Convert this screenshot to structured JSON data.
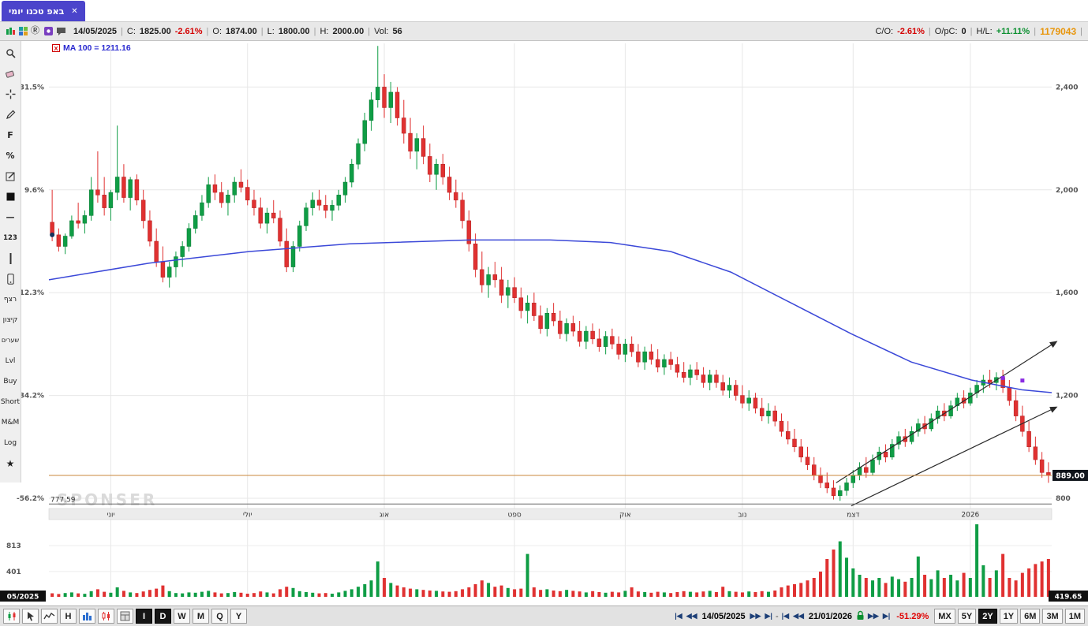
{
  "tab": {
    "title": "באפ טכנו יומי",
    "close": "✕"
  },
  "infobar": {
    "sep": "|",
    "date": "14/05/2025",
    "c_label": "C:",
    "c_value": "1825.00",
    "c_change": "-2.61%",
    "o_label": "O:",
    "o_value": "1874.00",
    "l_label": "L:",
    "l_value": "1800.00",
    "h_label": "H:",
    "h_value": "2000.00",
    "vol_label": "Vol:",
    "vol_value": "56",
    "right": {
      "co_label": "C/O:",
      "co_value": "-2.61%",
      "opc_label": "O/pC:",
      "opc_value": "0",
      "hl_label": "H/L:",
      "hl_value": "+11.11%",
      "id": "1179043"
    }
  },
  "sidebar": {
    "f": "F",
    "pct": "%",
    "dash": "—",
    "num": "123",
    "ratzef": "רצף",
    "kitzon": "קיצון",
    "shearim": "שערים",
    "lvl": "Lvl",
    "buy": "Buy",
    "short": "Short",
    "mm": "M&M",
    "log": "Log",
    "star": "★"
  },
  "chart_data": {
    "type": "candlestick",
    "ylim": [
      760,
      2570
    ],
    "vol_scale": 0.08,
    "price_ticks": [
      {
        "price": 2400,
        "label": "2,400",
        "pct": "31.5%"
      },
      {
        "price": 2000,
        "label": "2,000",
        "pct": "9.6%"
      },
      {
        "price": 1600,
        "label": "1,600",
        "pct": "-12.3%"
      },
      {
        "price": 1200,
        "label": "1,200",
        "pct": "-34.2%"
      },
      {
        "price": 800,
        "label": "800",
        "pct": "-56.2%"
      }
    ],
    "months": [
      {
        "label": "יוני",
        "idx": 9
      },
      {
        "label": "יולי",
        "idx": 30
      },
      {
        "label": "אוג",
        "idx": 51
      },
      {
        "label": "ספט",
        "idx": 71
      },
      {
        "label": "אוק",
        "idx": 88
      },
      {
        "label": "נוב",
        "idx": 106
      },
      {
        "label": "דצמ",
        "idx": 123
      },
      {
        "label": "2026",
        "idx": 141
      }
    ],
    "volume_ticks": [
      {
        "value": 813,
        "label": "813"
      },
      {
        "value": 401,
        "label": "401"
      }
    ],
    "ma": {
      "legend": "MA 100 = 1211.16",
      "box_label": "X",
      "color": "#3b48d8",
      "points": [
        [
          0,
          1650
        ],
        [
          0.1,
          1715
        ],
        [
          0.2,
          1760
        ],
        [
          0.3,
          1790
        ],
        [
          0.42,
          1805
        ],
        [
          0.5,
          1805
        ],
        [
          0.56,
          1795
        ],
        [
          0.62,
          1760
        ],
        [
          0.68,
          1680
        ],
        [
          0.74,
          1560
        ],
        [
          0.8,
          1440
        ],
        [
          0.86,
          1330
        ],
        [
          0.92,
          1260
        ],
        [
          0.97,
          1222
        ],
        [
          1,
          1211
        ]
      ]
    },
    "trendlines": [
      {
        "from": [
          0.785,
          860
        ],
        "to": [
          1.005,
          1410
        ]
      },
      {
        "from": [
          0.8,
          770
        ],
        "to": [
          1.005,
          1155
        ]
      }
    ],
    "hlines": [
      {
        "price": 889,
        "color": "#c8873c",
        "badge": "889.00"
      },
      {
        "price": 777.59,
        "color": "#666666",
        "label": "777.59"
      }
    ],
    "markers": [
      {
        "idx": 146,
        "price": 1268
      },
      {
        "idx": 149,
        "price": 1258
      }
    ],
    "selection_dot": {
      "idx": 0,
      "price": 1825
    },
    "badges": {
      "bottom_left": "05/2025",
      "bottom_right": "419.65"
    },
    "watermark": "SPONSER",
    "colors": {
      "up": "#0f9d45",
      "down": "#e03131"
    },
    "candles": [
      [
        1874,
        2000,
        1800,
        1825
      ],
      [
        1825,
        1850,
        1760,
        1780
      ],
      [
        1780,
        1830,
        1750,
        1820
      ],
      [
        1820,
        1900,
        1810,
        1880
      ],
      [
        1880,
        1950,
        1850,
        1870
      ],
      [
        1870,
        1920,
        1830,
        1900
      ],
      [
        1900,
        2050,
        1880,
        2000
      ],
      [
        2000,
        2150,
        1950,
        1980
      ],
      [
        1980,
        2050,
        1900,
        1930
      ],
      [
        1930,
        2000,
        1880,
        1990
      ],
      [
        1990,
        2250,
        1960,
        2050
      ],
      [
        2050,
        2100,
        1950,
        1970
      ],
      [
        1970,
        2050,
        1920,
        2040
      ],
      [
        2040,
        2060,
        1940,
        1960
      ],
      [
        1960,
        2000,
        1850,
        1880
      ],
      [
        1880,
        1920,
        1780,
        1800
      ],
      [
        1800,
        1850,
        1700,
        1720
      ],
      [
        1720,
        1780,
        1640,
        1660
      ],
      [
        1660,
        1720,
        1620,
        1700
      ],
      [
        1700,
        1760,
        1660,
        1740
      ],
      [
        1740,
        1800,
        1700,
        1780
      ],
      [
        1780,
        1870,
        1760,
        1850
      ],
      [
        1850,
        1920,
        1830,
        1900
      ],
      [
        1900,
        1980,
        1880,
        1950
      ],
      [
        1950,
        2050,
        1930,
        2020
      ],
      [
        2020,
        2060,
        1960,
        1990
      ],
      [
        1990,
        2030,
        1930,
        1950
      ],
      [
        1950,
        2000,
        1900,
        1980
      ],
      [
        1980,
        2050,
        1950,
        2030
      ],
      [
        2030,
        2080,
        1990,
        2010
      ],
      [
        2010,
        2040,
        1940,
        1960
      ],
      [
        1960,
        2000,
        1900,
        1930
      ],
      [
        1930,
        1970,
        1850,
        1870
      ],
      [
        1870,
        1930,
        1830,
        1910
      ],
      [
        1910,
        1960,
        1870,
        1890
      ],
      [
        1890,
        1920,
        1780,
        1800
      ],
      [
        1800,
        1850,
        1680,
        1700
      ],
      [
        1700,
        1800,
        1680,
        1780
      ],
      [
        1780,
        1880,
        1760,
        1860
      ],
      [
        1860,
        1950,
        1840,
        1930
      ],
      [
        1930,
        1990,
        1900,
        1960
      ],
      [
        1960,
        2000,
        1920,
        1940
      ],
      [
        1940,
        1980,
        1890,
        1920
      ],
      [
        1920,
        1960,
        1880,
        1940
      ],
      [
        1940,
        2000,
        1920,
        1980
      ],
      [
        1980,
        2050,
        1950,
        2030
      ],
      [
        2030,
        2120,
        2010,
        2100
      ],
      [
        2100,
        2200,
        2080,
        2180
      ],
      [
        2180,
        2300,
        2150,
        2270
      ],
      [
        2270,
        2380,
        2230,
        2350
      ],
      [
        2350,
        2560,
        2320,
        2400
      ],
      [
        2400,
        2450,
        2280,
        2320
      ],
      [
        2320,
        2420,
        2260,
        2380
      ],
      [
        2380,
        2400,
        2250,
        2280
      ],
      [
        2280,
        2350,
        2180,
        2220
      ],
      [
        2220,
        2280,
        2120,
        2150
      ],
      [
        2150,
        2220,
        2080,
        2200
      ],
      [
        2200,
        2250,
        2100,
        2130
      ],
      [
        2130,
        2180,
        2030,
        2060
      ],
      [
        2060,
        2120,
        2000,
        2100
      ],
      [
        2100,
        2140,
        2020,
        2050
      ],
      [
        2050,
        2090,
        1960,
        1990
      ],
      [
        1990,
        2040,
        1930,
        1960
      ],
      [
        1960,
        1990,
        1850,
        1880
      ],
      [
        1880,
        1920,
        1760,
        1790
      ],
      [
        1790,
        1830,
        1660,
        1690
      ],
      [
        1690,
        1760,
        1600,
        1630
      ],
      [
        1630,
        1700,
        1580,
        1670
      ],
      [
        1670,
        1720,
        1620,
        1650
      ],
      [
        1650,
        1700,
        1560,
        1590
      ],
      [
        1590,
        1650,
        1540,
        1620
      ],
      [
        1620,
        1660,
        1560,
        1580
      ],
      [
        1580,
        1620,
        1500,
        1530
      ],
      [
        1530,
        1590,
        1480,
        1560
      ],
      [
        1560,
        1600,
        1490,
        1510
      ],
      [
        1510,
        1550,
        1440,
        1460
      ],
      [
        1460,
        1540,
        1430,
        1520
      ],
      [
        1520,
        1560,
        1470,
        1490
      ],
      [
        1490,
        1530,
        1420,
        1440
      ],
      [
        1440,
        1500,
        1410,
        1480
      ],
      [
        1480,
        1510,
        1430,
        1450
      ],
      [
        1450,
        1490,
        1390,
        1410
      ],
      [
        1410,
        1470,
        1380,
        1450
      ],
      [
        1450,
        1480,
        1400,
        1420
      ],
      [
        1420,
        1460,
        1370,
        1390
      ],
      [
        1390,
        1450,
        1360,
        1430
      ],
      [
        1430,
        1460,
        1380,
        1400
      ],
      [
        1400,
        1430,
        1340,
        1360
      ],
      [
        1360,
        1420,
        1330,
        1400
      ],
      [
        1400,
        1430,
        1350,
        1370
      ],
      [
        1370,
        1400,
        1310,
        1330
      ],
      [
        1330,
        1390,
        1300,
        1370
      ],
      [
        1370,
        1400,
        1320,
        1340
      ],
      [
        1340,
        1380,
        1290,
        1310
      ],
      [
        1310,
        1360,
        1280,
        1340
      ],
      [
        1340,
        1370,
        1300,
        1320
      ],
      [
        1320,
        1350,
        1270,
        1290
      ],
      [
        1290,
        1330,
        1250,
        1270
      ],
      [
        1270,
        1320,
        1240,
        1300
      ],
      [
        1300,
        1330,
        1260,
        1280
      ],
      [
        1280,
        1310,
        1230,
        1250
      ],
      [
        1250,
        1300,
        1220,
        1280
      ],
      [
        1280,
        1300,
        1230,
        1250
      ],
      [
        1250,
        1280,
        1200,
        1220
      ],
      [
        1220,
        1270,
        1190,
        1240
      ],
      [
        1240,
        1260,
        1180,
        1200
      ],
      [
        1200,
        1240,
        1150,
        1170
      ],
      [
        1170,
        1220,
        1140,
        1190
      ],
      [
        1190,
        1210,
        1130,
        1150
      ],
      [
        1150,
        1190,
        1100,
        1120
      ],
      [
        1120,
        1170,
        1090,
        1140
      ],
      [
        1140,
        1160,
        1080,
        1100
      ],
      [
        1100,
        1130,
        1040,
        1060
      ],
      [
        1060,
        1100,
        1010,
        1030
      ],
      [
        1030,
        1070,
        980,
        1000
      ],
      [
        1000,
        1030,
        940,
        960
      ],
      [
        960,
        1000,
        910,
        930
      ],
      [
        930,
        960,
        870,
        890
      ],
      [
        890,
        920,
        840,
        860
      ],
      [
        860,
        900,
        820,
        840
      ],
      [
        840,
        870,
        795,
        810
      ],
      [
        810,
        850,
        790,
        830
      ],
      [
        830,
        880,
        810,
        860
      ],
      [
        860,
        910,
        840,
        890
      ],
      [
        890,
        940,
        870,
        920
      ],
      [
        920,
        960,
        880,
        900
      ],
      [
        900,
        970,
        890,
        950
      ],
      [
        950,
        1000,
        930,
        980
      ],
      [
        980,
        1010,
        940,
        960
      ],
      [
        960,
        1030,
        950,
        1010
      ],
      [
        1010,
        1060,
        990,
        1040
      ],
      [
        1040,
        1070,
        1000,
        1020
      ],
      [
        1020,
        1080,
        1010,
        1060
      ],
      [
        1060,
        1110,
        1040,
        1090
      ],
      [
        1090,
        1120,
        1050,
        1070
      ],
      [
        1070,
        1130,
        1060,
        1110
      ],
      [
        1110,
        1160,
        1090,
        1140
      ],
      [
        1140,
        1170,
        1100,
        1120
      ],
      [
        1120,
        1180,
        1110,
        1160
      ],
      [
        1160,
        1210,
        1140,
        1190
      ],
      [
        1190,
        1220,
        1150,
        1170
      ],
      [
        1170,
        1230,
        1160,
        1210
      ],
      [
        1210,
        1260,
        1190,
        1240
      ],
      [
        1240,
        1280,
        1210,
        1260
      ],
      [
        1260,
        1300,
        1230,
        1250
      ],
      [
        1250,
        1290,
        1220,
        1270
      ],
      [
        1270,
        1300,
        1210,
        1230
      ],
      [
        1230,
        1260,
        1160,
        1180
      ],
      [
        1180,
        1220,
        1100,
        1120
      ],
      [
        1120,
        1160,
        1040,
        1060
      ],
      [
        1060,
        1100,
        980,
        1000
      ],
      [
        1000,
        1040,
        930,
        950
      ],
      [
        950,
        980,
        880,
        900
      ],
      [
        900,
        940,
        860,
        889
      ]
    ],
    "volumes": [
      56,
      45,
      60,
      70,
      55,
      48,
      90,
      120,
      80,
      65,
      150,
      95,
      70,
      60,
      85,
      110,
      130,
      180,
      90,
      60,
      55,
      70,
      65,
      80,
      95,
      70,
      55,
      60,
      75,
      65,
      50,
      60,
      85,
      70,
      55,
      120,
      160,
      140,
      90,
      75,
      65,
      55,
      60,
      50,
      70,
      95,
      120,
      160,
      200,
      260,
      560,
      300,
      220,
      180,
      150,
      130,
      120,
      110,
      100,
      95,
      85,
      80,
      90,
      120,
      150,
      200,
      260,
      220,
      160,
      180,
      140,
      120,
      130,
      680,
      150,
      110,
      120,
      100,
      90,
      110,
      95,
      85,
      70,
      90,
      75,
      65,
      80,
      70,
      95,
      150,
      85,
      75,
      65,
      80,
      70,
      60,
      75,
      90,
      80,
      70,
      85,
      95,
      75,
      160,
      90,
      80,
      70,
      85,
      75,
      90,
      80,
      100,
      150,
      180,
      200,
      220,
      260,
      300,
      400,
      600,
      750,
      880,
      620,
      450,
      350,
      300,
      260,
      300,
      220,
      320,
      280,
      240,
      300,
      640,
      350,
      280,
      420,
      300,
      350,
      260,
      380,
      300,
      1150,
      500,
      300,
      420,
      680,
      300,
      260,
      380,
      450,
      520,
      560,
      600
    ]
  },
  "bottombar": {
    "periods": {
      "i": "I",
      "d": "D",
      "w": "W",
      "m": "M",
      "q": "Q",
      "y": "Y",
      "h": "H"
    },
    "nav_glyphs": {
      "first": "|◀",
      "prev": "◀◀",
      "next": "▶▶",
      "last": "▶|"
    },
    "nav": {
      "start_date": "14/05/2025",
      "end_date": "21/01/2026",
      "dash": "-",
      "change": "-51.29%"
    },
    "ranges": {
      "mx": "MX",
      "y5": "5Y",
      "y2": "2Y",
      "y1": "1Y",
      "m6": "6M",
      "m3": "3M",
      "m1": "1M"
    }
  }
}
